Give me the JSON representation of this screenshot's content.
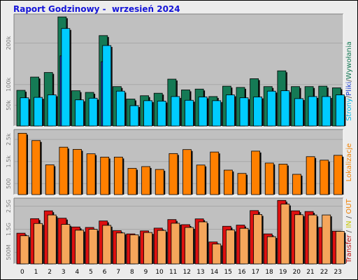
{
  "title": "Raport Godzinowy -  wrzesień 2024",
  "x_labels": [
    "0",
    "1",
    "2",
    "3",
    "4",
    "5",
    "6",
    "7",
    "8",
    "9",
    "10",
    "11",
    "12",
    "13",
    "14",
    "15",
    "16",
    "17",
    "18",
    "19",
    "20",
    "21",
    "22",
    "23"
  ],
  "colors": {
    "background": "#ececec",
    "plot_bg": "#c0c0c0",
    "hits": "#157a55",
    "files": "#1e3fd2",
    "pages": "#00ccff",
    "sites": "#ff8000",
    "kbytes": "#dd1010",
    "kbytes_out": "#f5a65b",
    "title": "#1414d8",
    "tick": "#7a7a7a",
    "label_transfer": "#c01010",
    "label_in": "#c8c800",
    "label_out": "#f08000",
    "label_sites": "#f08000"
  },
  "panel_labels": {
    "top": [
      {
        "text": "Strony",
        "color": "#00b8e6"
      },
      {
        "text": "/",
        "color": "#555555"
      },
      {
        "text": "Pliki",
        "color": "#1e3fd2"
      },
      {
        "text": "/",
        "color": "#555555"
      },
      {
        "text": "Wywołania",
        "color": "#157a55"
      }
    ],
    "middle": [
      {
        "text": "Lokalizacje",
        "color": "#f08000"
      }
    ],
    "bottom": [
      {
        "text": "Transfer",
        "color": "#c01010"
      },
      {
        "text": " / ",
        "color": "#555555"
      },
      {
        "text": "IN",
        "color": "#c8c800"
      },
      {
        "text": " / ",
        "color": "#555555"
      },
      {
        "text": "OUT",
        "color": "#f08000"
      }
    ]
  },
  "chart_data": [
    {
      "type": "bar",
      "categories": [
        "0",
        "1",
        "2",
        "3",
        "4",
        "5",
        "6",
        "7",
        "8",
        "9",
        "10",
        "11",
        "12",
        "13",
        "14",
        "15",
        "16",
        "17",
        "18",
        "19",
        "20",
        "21",
        "22",
        "23"
      ],
      "ylim": [
        0,
        270000
      ],
      "yticks": [
        {
          "value": 50000,
          "label": "50k"
        },
        {
          "value": 100000,
          "label": "100k"
        },
        {
          "value": 200000,
          "label": "200k"
        }
      ],
      "series": [
        {
          "name": "Wywołania",
          "values": [
            86000,
            118000,
            129000,
            263000,
            85000,
            81000,
            218000,
            95000,
            65000,
            73000,
            79000,
            113000,
            87000,
            89000,
            71000,
            96000,
            93000,
            114000,
            95000,
            133000,
            95000,
            95000,
            96000,
            92000
          ]
        },
        {
          "name": "Pliki",
          "values": [
            0,
            0,
            0,
            169000,
            0,
            0,
            155000,
            0,
            0,
            0,
            0,
            0,
            0,
            0,
            0,
            0,
            0,
            0,
            0,
            0,
            0,
            0,
            0,
            0
          ]
        },
        {
          "name": "Strony",
          "values": [
            68000,
            69000,
            75000,
            235000,
            63000,
            67000,
            194000,
            84000,
            49000,
            61000,
            60000,
            71000,
            62000,
            70000,
            61000,
            75000,
            68000,
            70000,
            84000,
            85000,
            66000,
            71000,
            71000,
            75000
          ]
        }
      ]
    },
    {
      "type": "bar",
      "categories": [
        "0",
        "1",
        "2",
        "3",
        "4",
        "5",
        "6",
        "7",
        "8",
        "9",
        "10",
        "11",
        "12",
        "13",
        "14",
        "15",
        "16",
        "17",
        "18",
        "19",
        "20",
        "21",
        "22",
        "23"
      ],
      "ylim": [
        0,
        2950
      ],
      "yticks": [
        {
          "value": 500,
          "label": "500"
        },
        {
          "value": 1500,
          "label": "1.5k"
        },
        {
          "value": 2500,
          "label": "2.5k"
        }
      ],
      "series": [
        {
          "name": "Lokalizacje",
          "values": [
            2780,
            2450,
            1350,
            2150,
            2050,
            1850,
            1700,
            1700,
            1190,
            1270,
            1140,
            1860,
            2040,
            1340,
            1930,
            1110,
            960,
            1970,
            1430,
            1380,
            920,
            1720,
            1560,
            1780
          ]
        }
      ]
    },
    {
      "type": "bar",
      "categories": [
        "0",
        "1",
        "2",
        "3",
        "4",
        "5",
        "6",
        "7",
        "8",
        "9",
        "10",
        "11",
        "12",
        "13",
        "14",
        "15",
        "16",
        "17",
        "18",
        "19",
        "20",
        "21",
        "22",
        "23"
      ],
      "ylim": [
        0,
        2.85
      ],
      "yticks": [
        {
          "value": 0.5,
          "label": "500M"
        },
        {
          "value": 1.5,
          "label": "1.5G"
        },
        {
          "value": 2.5,
          "label": "2.5G"
        }
      ],
      "series": [
        {
          "name": "Transfer",
          "values": [
            1.33,
            1.96,
            2.3,
            1.98,
            1.6,
            1.58,
            1.86,
            1.44,
            1.3,
            1.43,
            1.55,
            1.92,
            1.7,
            1.95,
            0.95,
            1.63,
            1.68,
            2.31,
            1.3,
            2.75,
            2.3,
            2.27,
            1.58,
            1.42
          ]
        },
        {
          "name": "OUT",
          "values": [
            1.22,
            1.75,
            2.12,
            1.71,
            1.46,
            1.5,
            1.67,
            1.34,
            1.26,
            1.36,
            1.45,
            1.76,
            1.58,
            1.82,
            0.86,
            1.47,
            1.54,
            2.14,
            1.18,
            2.59,
            2.13,
            2.12,
            2.12,
            1.41
          ]
        }
      ]
    }
  ]
}
